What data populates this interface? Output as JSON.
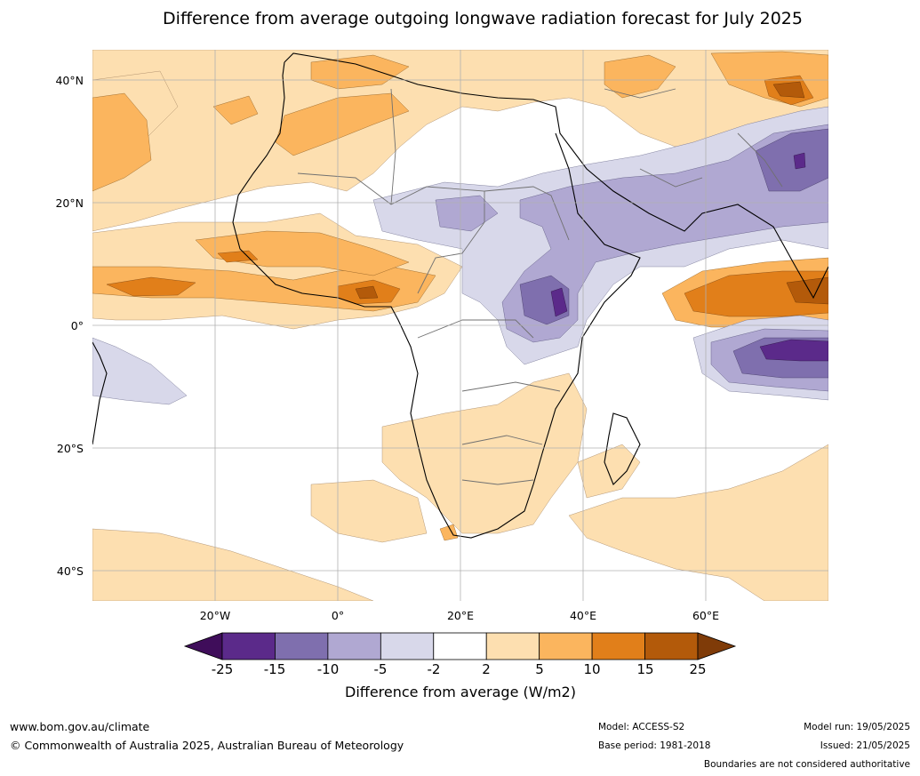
{
  "title": "Difference from average outgoing longwave radiation forecast for July 2025",
  "lat_labels": [
    "40°N",
    "20°N",
    "0°",
    "20°S",
    "40°S"
  ],
  "lon_labels": [
    "20°W",
    "0°",
    "20°E",
    "40°E",
    "60°E"
  ],
  "colorbar": {
    "ticks": [
      "-25",
      "-15",
      "-10",
      "-5",
      "-2",
      "2",
      "5",
      "10",
      "15",
      "25"
    ],
    "colors": [
      "#3f0d5a",
      "#5b2a8a",
      "#7f6fae",
      "#b0a8d2",
      "#d8d8ea",
      "#ffffff",
      "#fddfb0",
      "#fbb55e",
      "#e17f1a",
      "#b35a0a",
      "#7f3b08"
    ],
    "label": "Difference from average (W/m2)"
  },
  "footer": {
    "url": "www.bom.gov.au/climate",
    "copyright": "© Commonwealth of Australia 2025, Australian Bureau of Meteorology",
    "model": "Model: ACCESS-S2",
    "base_period": "Base period: 1981-2018",
    "model_run": "Model run: 19/05/2025",
    "issued": "Issued: 21/05/2025",
    "disclaimer": "Boundaries are not considered authoritative"
  }
}
